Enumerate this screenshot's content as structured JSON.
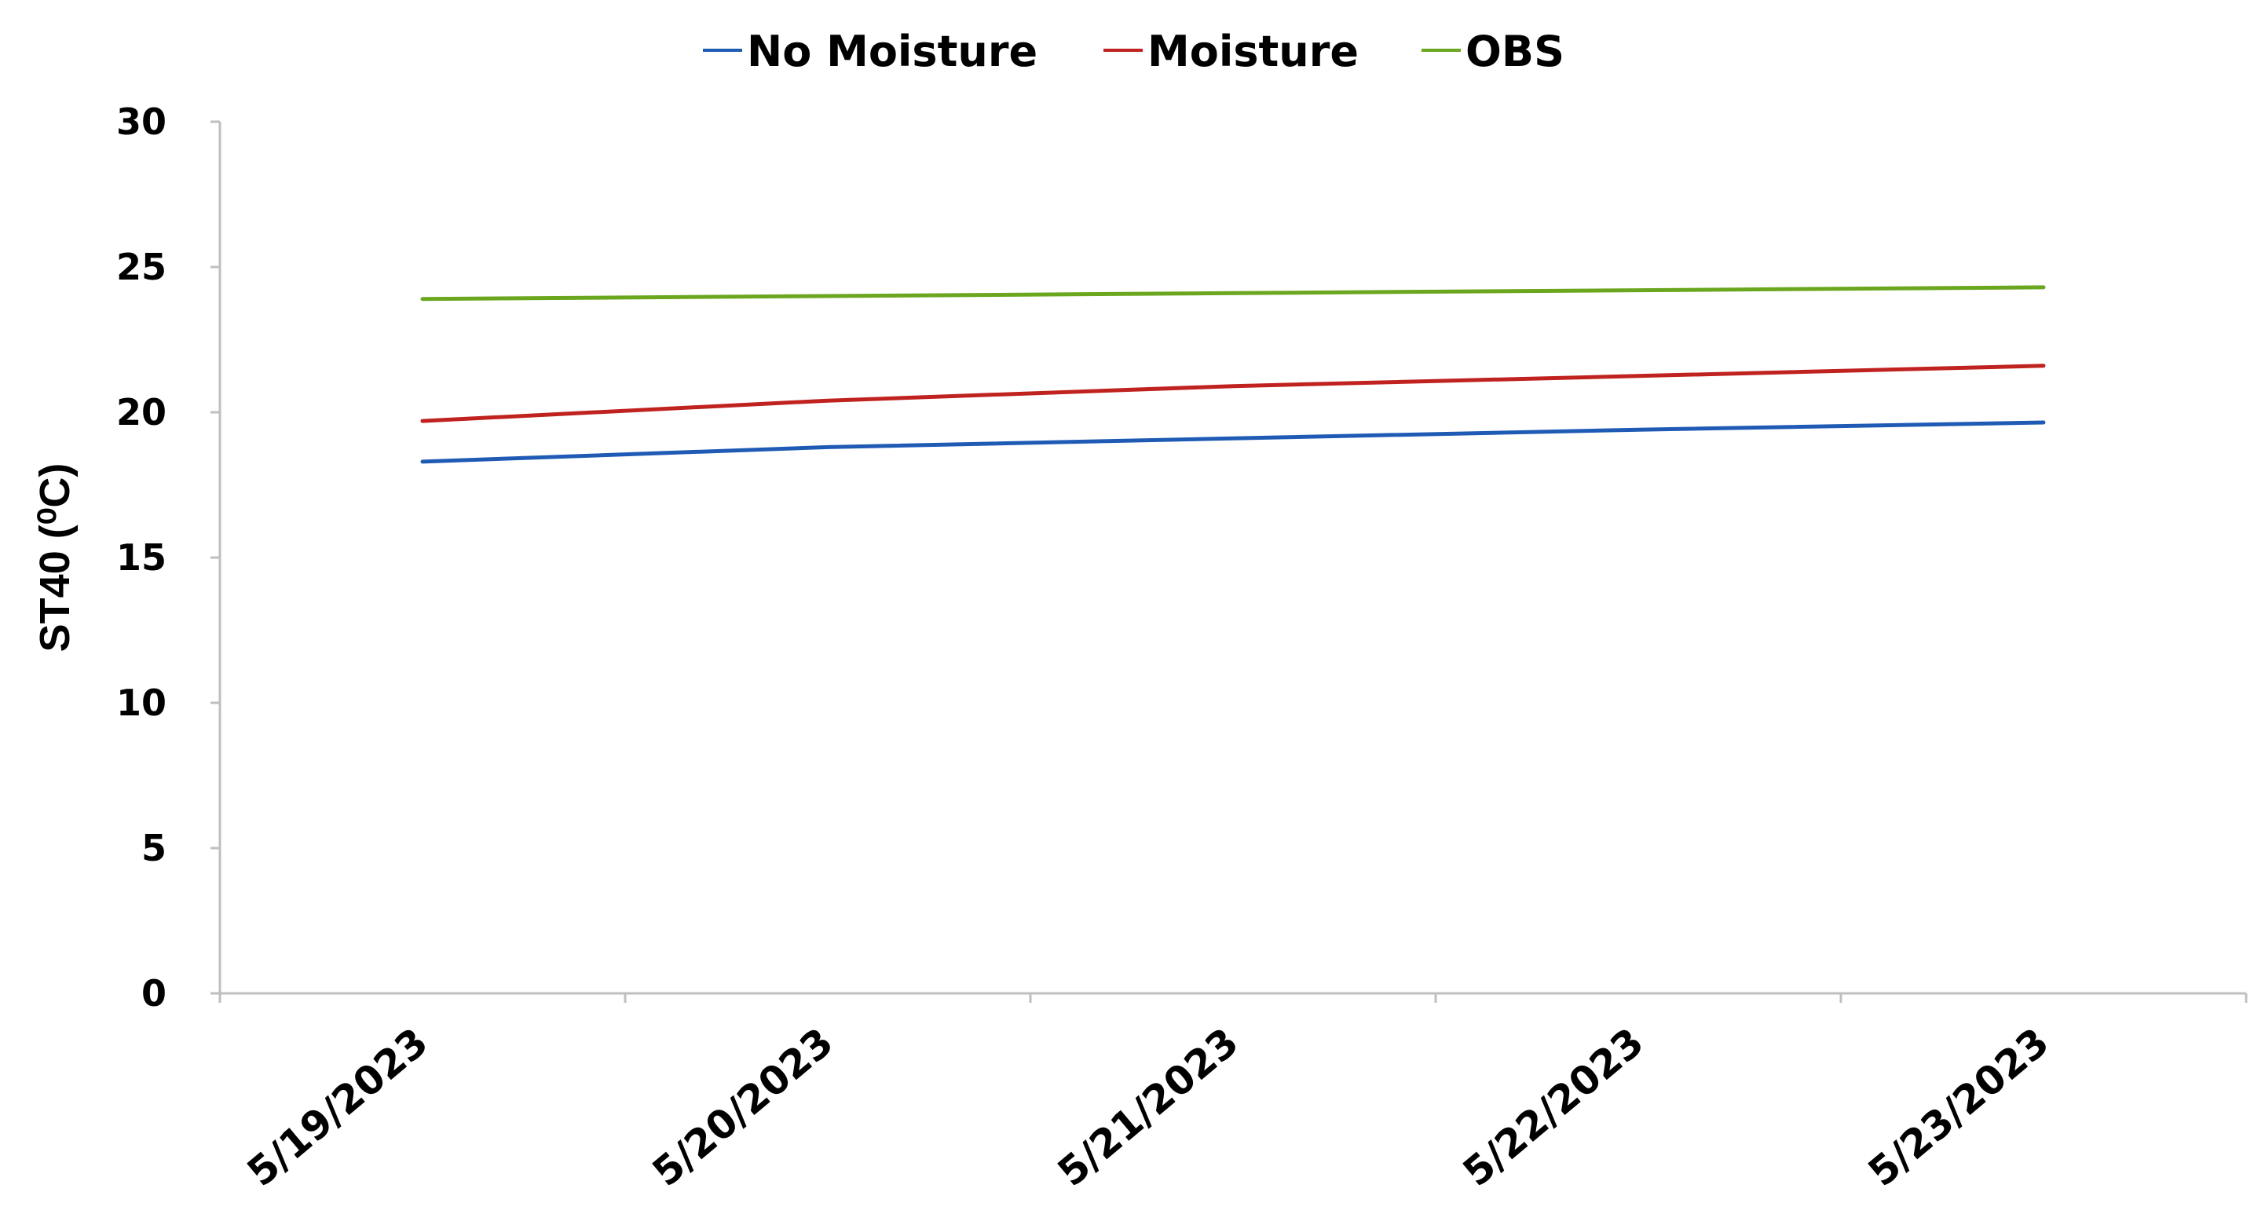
{
  "chart_data": {
    "type": "line",
    "title": "",
    "xlabel": "",
    "ylabel": "ST40 (⁰C)",
    "ylim": [
      0,
      30
    ],
    "y_ticks": [
      "0",
      "5",
      "10",
      "15",
      "20",
      "25",
      "30"
    ],
    "categories": [
      "5/19/2023",
      "5/20/2023",
      "5/21/2023",
      "5/22/2023",
      "5/23/2023"
    ],
    "series": [
      {
        "name": "No Moisture",
        "color": "#1f5bb5",
        "values": [
          18.3,
          18.8,
          19.1,
          19.4,
          19.65
        ]
      },
      {
        "name": "Moisture",
        "color": "#c0221f",
        "values": [
          19.7,
          20.4,
          20.9,
          21.25,
          21.6
        ]
      },
      {
        "name": "OBS",
        "color": "#6aa61e",
        "values": [
          23.9,
          24.0,
          24.1,
          24.2,
          24.3
        ]
      }
    ],
    "legend_position": "top-center",
    "grid": false
  }
}
